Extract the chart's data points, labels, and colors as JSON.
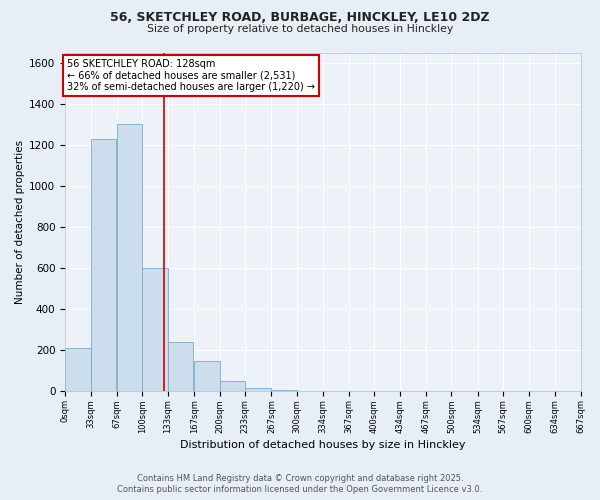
{
  "title_line1": "56, SKETCHLEY ROAD, BURBAGE, HINCKLEY, LE10 2DZ",
  "title_line2": "Size of property relative to detached houses in Hinckley",
  "xlabel": "Distribution of detached houses by size in Hinckley",
  "ylabel": "Number of detached properties",
  "footer_line1": "Contains HM Land Registry data © Crown copyright and database right 2025.",
  "footer_line2": "Contains public sector information licensed under the Open Government Licence v3.0.",
  "bin_labels": [
    "0sqm",
    "33sqm",
    "67sqm",
    "100sqm",
    "133sqm",
    "167sqm",
    "200sqm",
    "233sqm",
    "267sqm",
    "300sqm",
    "334sqm",
    "367sqm",
    "400sqm",
    "434sqm",
    "467sqm",
    "500sqm",
    "534sqm",
    "567sqm",
    "600sqm",
    "634sqm",
    "667sqm"
  ],
  "bin_edges": [
    0,
    33,
    67,
    100,
    133,
    167,
    200,
    233,
    267,
    300,
    334,
    367,
    400,
    434,
    467,
    500,
    534,
    567,
    600,
    634,
    667
  ],
  "bar_heights": [
    210,
    1230,
    1300,
    600,
    240,
    150,
    50,
    15,
    8,
    4,
    2,
    1,
    1,
    0,
    0,
    0,
    0,
    0,
    0,
    0
  ],
  "bar_color": "#ccdded",
  "bar_edge_color": "#7aaac8",
  "property_size": 128,
  "vline_color": "#cc0000",
  "annotation_line1": "56 SKETCHLEY ROAD: 128sqm",
  "annotation_line2": "← 66% of detached houses are smaller (2,531)",
  "annotation_line3": "32% of semi-detached houses are larger (1,220) →",
  "annotation_box_facecolor": "#ffffff",
  "annotation_box_edgecolor": "#cc0000",
  "ylim": [
    0,
    1650
  ],
  "yticks": [
    0,
    200,
    400,
    600,
    800,
    1000,
    1200,
    1400,
    1600
  ],
  "bg_color": "#e8eef5",
  "plot_bg_color": "#edf2f8",
  "grid_color": "#d8e2ee"
}
